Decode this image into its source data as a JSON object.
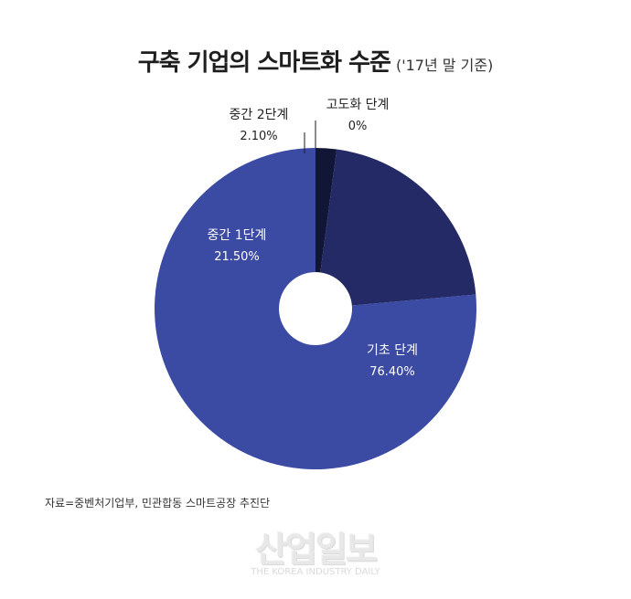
{
  "title": "구축 기업의 스마트화 수준",
  "subtitle": "('17년 말 기준)",
  "source": "자료=중벤처기업부, 민관합동 스마트공장 추진단",
  "watermark": {
    "main": "산업일보",
    "sub": "THE KOREA INDUSTRY DAILY"
  },
  "chart_data": {
    "type": "pie",
    "donut": true,
    "title": "구축 기업의 스마트화 수준",
    "subtitle": "('17년 말 기준)",
    "slices": [
      {
        "label": "기초 단계",
        "value_label": "76.40%",
        "value": 76.4,
        "color": "#3b4aa3"
      },
      {
        "label": "중간 1단계",
        "value_label": "21.50%",
        "value": 21.5,
        "color": "#232a65"
      },
      {
        "label": "중간 2단계",
        "value_label": "2.10%",
        "value": 2.1,
        "color": "#121636"
      },
      {
        "label": "고도화 단계",
        "value_label": "0%",
        "value": 0,
        "color": "#0a0c20"
      }
    ]
  }
}
